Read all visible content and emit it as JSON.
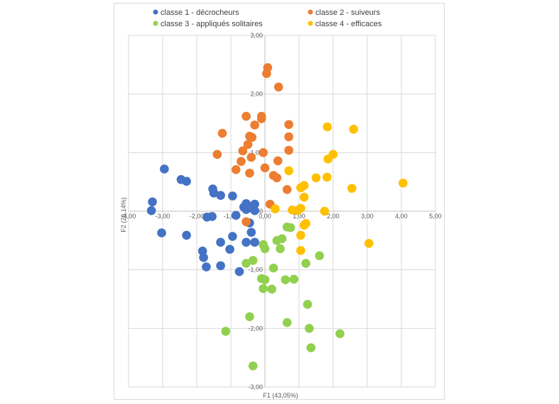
{
  "chart_data": {
    "type": "scatter",
    "xlabel": "F1 (43,05%)",
    "ylabel": "F2 (28,14%)",
    "xlim": [
      -4,
      5
    ],
    "ylim": [
      -3,
      3
    ],
    "x_ticks": [
      "-4,00",
      "-3,00",
      "-2,00",
      "-1,00",
      "0,00",
      "1,00",
      "2,00",
      "3,00",
      "4,00",
      "5,00"
    ],
    "y_ticks": [
      "3,00",
      "2,00",
      "1,00",
      "0,00",
      "-1,00",
      "-2,00",
      "-3,00"
    ],
    "grid": "vertical and horizontal major gridlines",
    "legend_position": "top",
    "series": [
      {
        "name": "classe 1 - décrocheurs",
        "color": "#4472c4",
        "points": [
          [
            -2.95,
            0.72
          ],
          [
            -2.46,
            0.54
          ],
          [
            -2.3,
            0.51
          ],
          [
            -3.3,
            0.16
          ],
          [
            -3.33,
            0.01
          ],
          [
            -3.03,
            -0.37
          ],
          [
            -2.3,
            -0.41
          ],
          [
            -1.53,
            0.38
          ],
          [
            -1.5,
            0.31
          ],
          [
            -1.3,
            0.27
          ],
          [
            -1.55,
            -0.09
          ],
          [
            -1.7,
            -0.1
          ],
          [
            -0.95,
            0.26
          ],
          [
            -0.55,
            0.13
          ],
          [
            -0.3,
            0.12
          ],
          [
            -0.62,
            0.07
          ],
          [
            -0.5,
            0.05
          ],
          [
            -0.85,
            -0.07
          ],
          [
            -0.3,
            0.01
          ],
          [
            -0.55,
            0.03
          ],
          [
            -0.45,
            -0.2
          ],
          [
            -0.95,
            -0.43
          ],
          [
            -0.4,
            -0.36
          ],
          [
            -0.55,
            -0.53
          ],
          [
            -0.3,
            -0.53
          ],
          [
            -1.3,
            -0.53
          ],
          [
            -1.03,
            -0.65
          ],
          [
            -1.83,
            -0.68
          ],
          [
            -1.8,
            -0.79
          ],
          [
            -1.3,
            -0.93
          ],
          [
            -1.72,
            -0.95
          ],
          [
            -0.75,
            -1.03
          ]
        ]
      },
      {
        "name": "classe 2 - suiveurs",
        "color": "#ed7d31",
        "points": [
          [
            0.08,
            2.45
          ],
          [
            0.05,
            2.35
          ],
          [
            0.4,
            2.12
          ],
          [
            -0.55,
            1.62
          ],
          [
            -0.1,
            1.62
          ],
          [
            -0.1,
            1.58
          ],
          [
            -0.3,
            1.47
          ],
          [
            0.7,
            1.48
          ],
          [
            -1.25,
            1.33
          ],
          [
            -0.45,
            1.28
          ],
          [
            -0.38,
            1.26
          ],
          [
            0.7,
            1.27
          ],
          [
            -0.5,
            1.14
          ],
          [
            -0.65,
            1.03
          ],
          [
            -0.05,
            1.0
          ],
          [
            0.7,
            1.04
          ],
          [
            -1.4,
            0.97
          ],
          [
            -0.4,
            0.92
          ],
          [
            -0.7,
            0.85
          ],
          [
            0.38,
            0.86
          ],
          [
            0.0,
            0.74
          ],
          [
            -0.85,
            0.71
          ],
          [
            -0.45,
            0.65
          ],
          [
            0.25,
            0.61
          ],
          [
            0.35,
            0.57
          ],
          [
            0.65,
            0.37
          ],
          [
            0.15,
            0.12
          ],
          [
            -0.55,
            -0.18
          ]
        ]
      },
      {
        "name": "classe 3 - appliqués solitaires",
        "color": "#92d050",
        "points": [
          [
            0.65,
            -0.27
          ],
          [
            0.75,
            -0.28
          ],
          [
            0.5,
            -0.47
          ],
          [
            0.35,
            -0.5
          ],
          [
            -0.05,
            -0.57
          ],
          [
            0.0,
            -0.64
          ],
          [
            0.45,
            -0.64
          ],
          [
            1.6,
            -0.76
          ],
          [
            -0.35,
            -0.84
          ],
          [
            -0.55,
            -0.89
          ],
          [
            1.2,
            -0.89
          ],
          [
            0.25,
            -0.97
          ],
          [
            -0.1,
            -1.15
          ],
          [
            0.0,
            -1.17
          ],
          [
            0.6,
            -1.17
          ],
          [
            0.85,
            -1.16
          ],
          [
            -0.05,
            -1.32
          ],
          [
            0.2,
            -1.33
          ],
          [
            1.25,
            -1.59
          ],
          [
            -0.45,
            -1.8
          ],
          [
            0.65,
            -1.9
          ],
          [
            1.3,
            -2.0
          ],
          [
            -1.15,
            -2.05
          ],
          [
            2.2,
            -2.09
          ],
          [
            1.35,
            -2.33
          ],
          [
            -0.35,
            -2.64
          ]
        ]
      },
      {
        "name": "classe 4 - efficaces",
        "color": "#ffc000",
        "points": [
          [
            1.83,
            1.44
          ],
          [
            2.6,
            1.4
          ],
          [
            2.0,
            0.97
          ],
          [
            1.85,
            0.89
          ],
          [
            0.7,
            0.69
          ],
          [
            1.5,
            0.57
          ],
          [
            1.82,
            0.58
          ],
          [
            1.15,
            0.44
          ],
          [
            1.05,
            0.4
          ],
          [
            2.55,
            0.39
          ],
          [
            4.05,
            0.48
          ],
          [
            1.15,
            0.24
          ],
          [
            0.3,
            0.04
          ],
          [
            0.8,
            0.02
          ],
          [
            0.95,
            0.01
          ],
          [
            1.05,
            0.05
          ],
          [
            1.75,
            0.0
          ],
          [
            1.2,
            -0.21
          ],
          [
            1.15,
            -0.24
          ],
          [
            1.05,
            -0.41
          ],
          [
            3.05,
            -0.55
          ],
          [
            1.05,
            -0.67
          ]
        ]
      }
    ]
  }
}
